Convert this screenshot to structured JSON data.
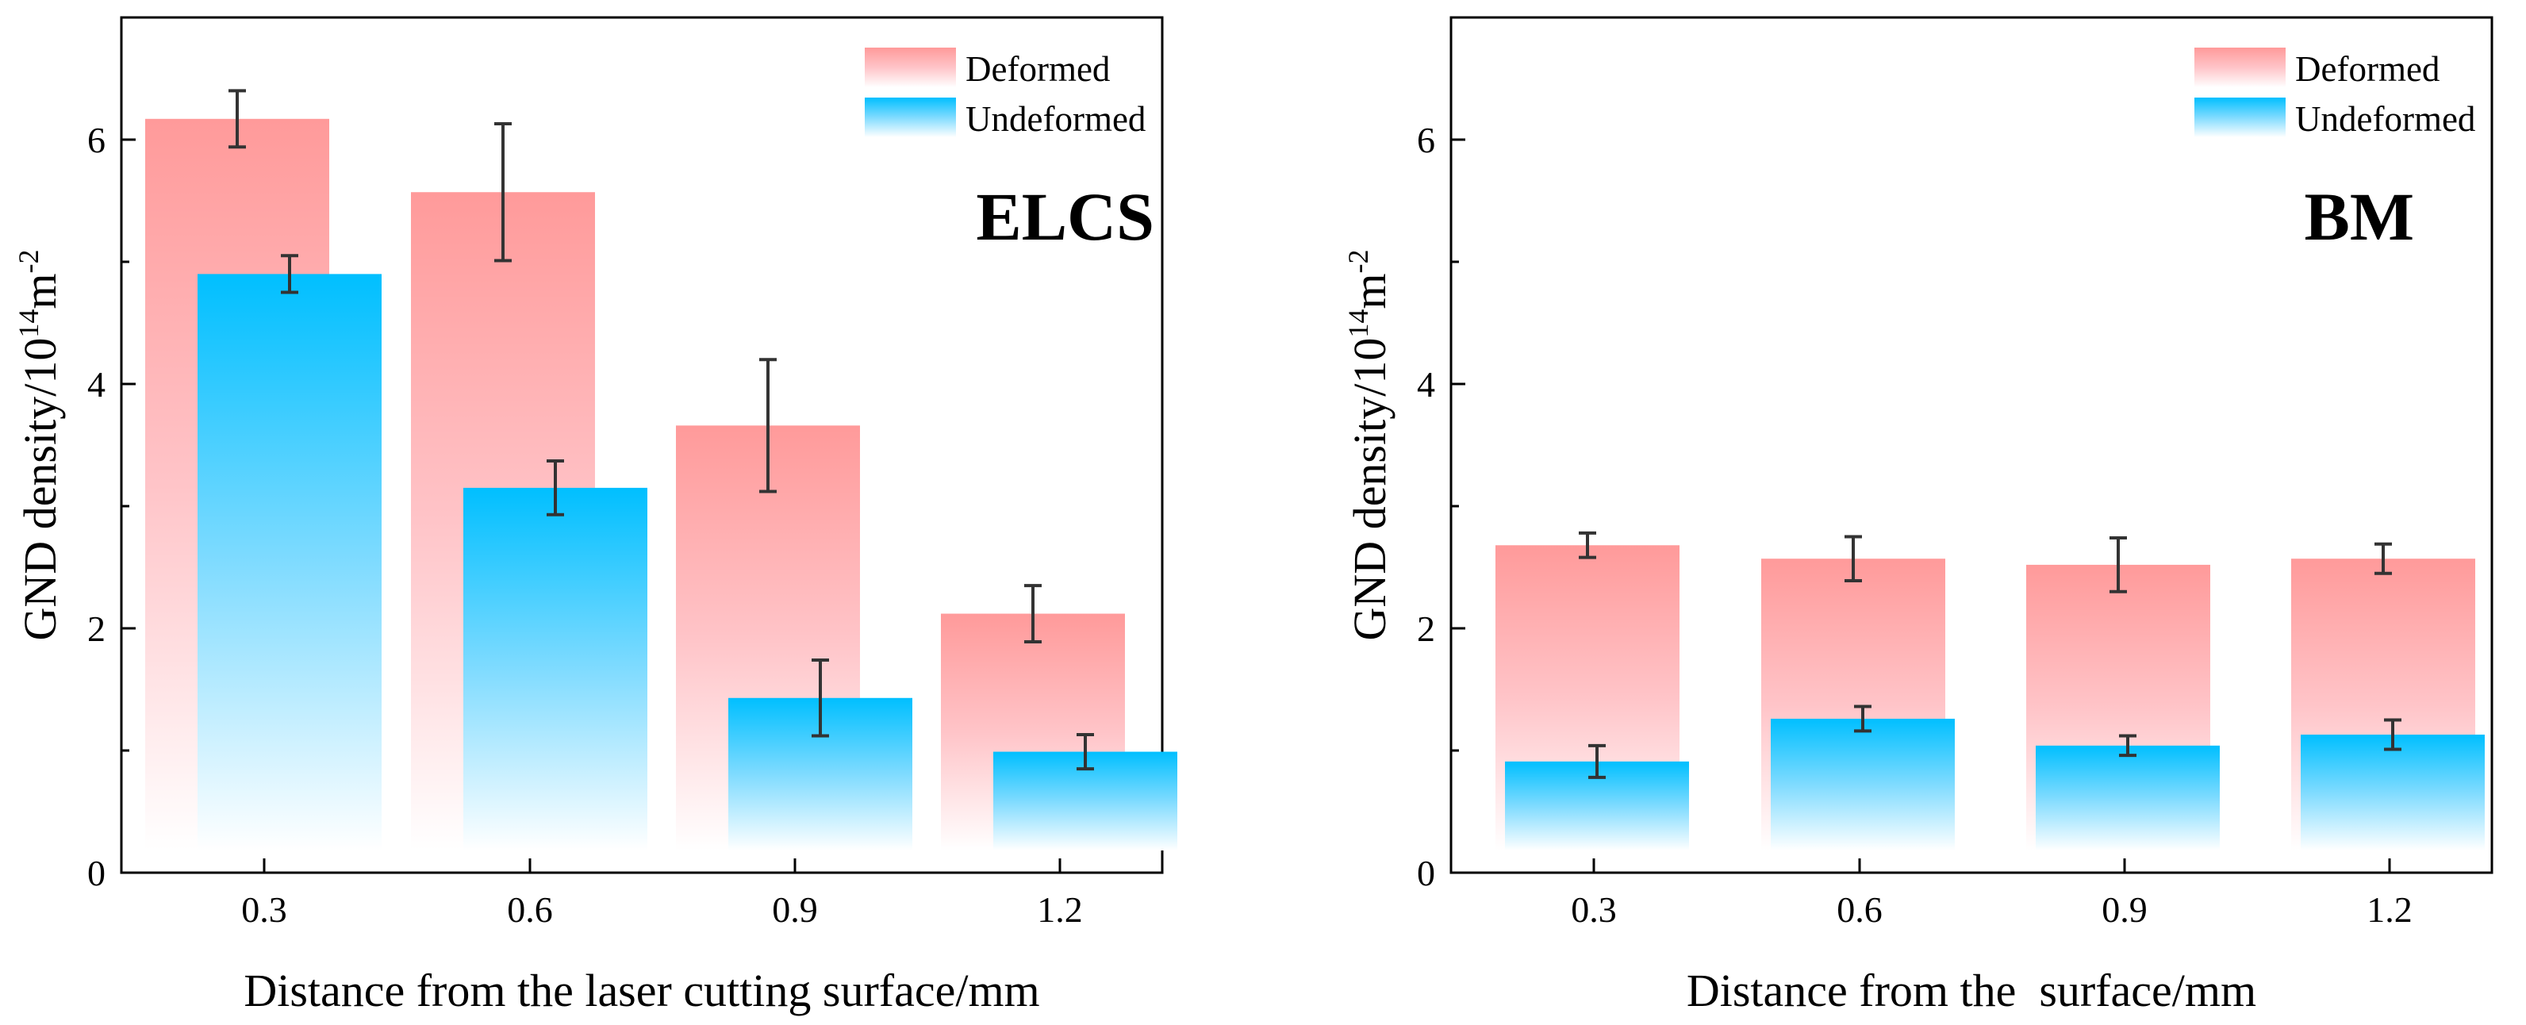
{
  "chart_data": [
    {
      "type": "bar",
      "panel_label": "ELCS",
      "categories": [
        "0.3",
        "0.6",
        "0.9",
        "1.2"
      ],
      "series": [
        {
          "name": "Deformed",
          "values": [
            6.17,
            5.57,
            3.66,
            2.12
          ],
          "errors": [
            0.23,
            0.56,
            0.54,
            0.23
          ],
          "color": "#FF9A9A"
        },
        {
          "name": "Undeformed",
          "values": [
            4.9,
            3.15,
            1.43,
            0.99
          ],
          "errors": [
            0.15,
            0.22,
            0.31,
            0.14
          ],
          "color": "#00BFFF"
        }
      ],
      "xlabel": "Distance from the laser cutting surface/mm",
      "ylabel": "GND density/10",
      "ylabel_sup": "14",
      "ylabel_unit": "m",
      "ylabel_unit_sup": "-2",
      "yticks": [
        "0",
        "2",
        "4",
        "6"
      ],
      "ylim": [
        0,
        7
      ],
      "legend_position": "top-right"
    },
    {
      "type": "bar",
      "panel_label": "BM",
      "categories": [
        "0.3",
        "0.6",
        "0.9",
        "1.2"
      ],
      "series": [
        {
          "name": "Deformed",
          "values": [
            2.68,
            2.57,
            2.52,
            2.57
          ],
          "errors": [
            0.1,
            0.18,
            0.22,
            0.12
          ],
          "color": "#FF9A9A"
        },
        {
          "name": "Undeformed",
          "values": [
            0.91,
            1.26,
            1.04,
            1.13
          ],
          "errors": [
            0.13,
            0.1,
            0.08,
            0.12
          ],
          "color": "#00BFFF"
        }
      ],
      "xlabel": "Distance from the  surface/mm",
      "ylabel": "GND density/10",
      "ylabel_sup": "14",
      "ylabel_unit": "m",
      "ylabel_unit_sup": "-2",
      "yticks": [
        "0",
        "2",
        "4",
        "6"
      ],
      "ylim": [
        0,
        7
      ],
      "legend_position": "top-right"
    }
  ]
}
